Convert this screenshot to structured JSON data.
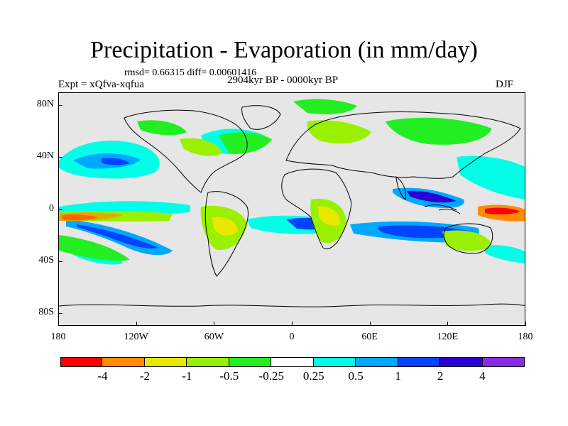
{
  "title": "Precipitation - Evaporation (in mm/day)",
  "stats": "rmsd= 0.66315 diff= 0.00601416",
  "experiment": "Expt = xQfva-xqfua",
  "period": "2904kyr BP - 0000kyr BP",
  "season": "DJF",
  "y_axis": {
    "ticks": [
      {
        "label": "80N",
        "lat": 80
      },
      {
        "label": "40N",
        "lat": 40
      },
      {
        "label": "0",
        "lat": 0
      },
      {
        "label": "40S",
        "lat": -40
      },
      {
        "label": "80S",
        "lat": -80
      }
    ]
  },
  "x_axis": {
    "ticks": [
      {
        "label": "180",
        "lon": -180
      },
      {
        "label": "120W",
        "lon": -120
      },
      {
        "label": "60W",
        "lon": -60
      },
      {
        "label": "0",
        "lon": 0
      },
      {
        "label": "60E",
        "lon": 60
      },
      {
        "label": "120E",
        "lon": 120
      },
      {
        "label": "180",
        "lon": 180
      }
    ]
  },
  "colorbar": {
    "colors": [
      "#ff0000",
      "#ff8c00",
      "#e8e800",
      "#99f000",
      "#22ee22",
      "#ffffff",
      "#00ffe6",
      "#00a8ff",
      "#0044ff",
      "#2a00d4",
      "#8a2be2"
    ],
    "labels": [
      "-4",
      "-2",
      "-1",
      "-0.5",
      "-0.25",
      "0.25",
      "0.5",
      "1",
      "2",
      "4"
    ]
  },
  "colors": {
    "land_background": "#e6e6e6",
    "coast": "#000000"
  }
}
